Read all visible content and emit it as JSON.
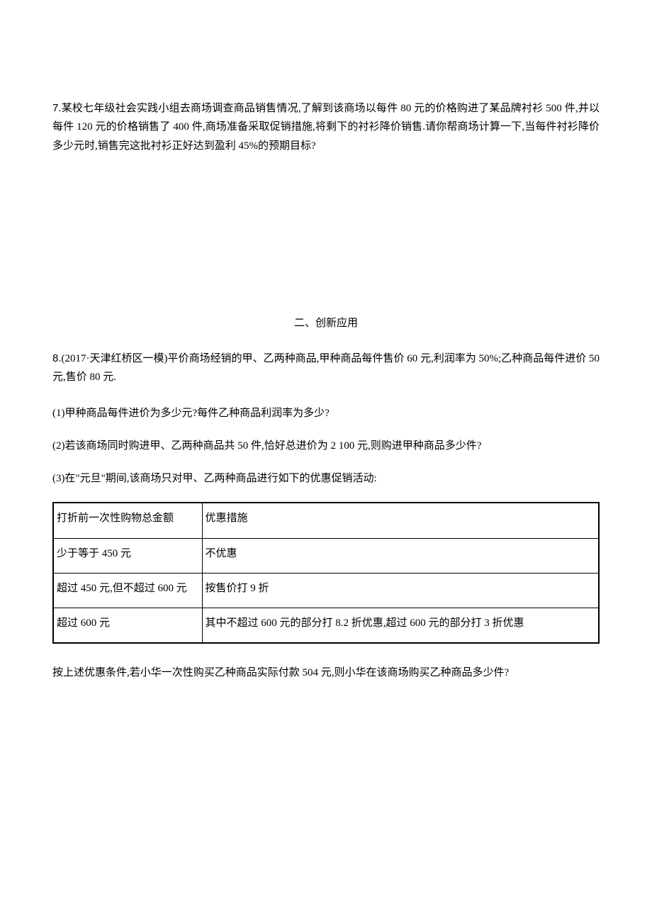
{
  "q7": {
    "number": "7.",
    "text": "某校七年级社会实践小组去商场调查商品销售情况,了解到该商场以每件 80 元的价格购进了某品牌衬衫 500 件,并以每件 120 元的价格销售了 400 件,商场准备采取促销措施,将剩下的衬衫降价销售.请你帮商场计算一下,当每件衬衫降价多少元时,销售完这批衬衫正好达到盈利 45%的预期目标?"
  },
  "section2": "二、创新应用",
  "q8": {
    "number": "8.",
    "intro": "(2017·天津红桥区一模)平价商场经销的甲、乙两种商品,甲种商品每件售价 60 元,利润率为 50%;乙种商品每件进价 50 元,售价 80 元.",
    "sub1": "(1)甲种商品每件进价为多少元?每件乙种商品利润率为多少?",
    "sub2": "(2)若该商场同时购进甲、乙两种商品共 50 件,恰好总进价为 2 100 元,则购进甲种商品多少件?",
    "sub3": "(3)在\"元旦\"期间,该商场只对甲、乙两种商品进行如下的优惠促销活动:",
    "table": {
      "header": [
        "打折前一次性购物总金额",
        "优惠措施"
      ],
      "rows": [
        [
          "少于等于 450 元",
          "不优惠"
        ],
        [
          "超过 450 元,但不超过 600 元",
          "按售价打 9 折"
        ],
        [
          "超过 600 元",
          "其中不超过 600 元的部分打 8.2 折优惠,超过 600 元的部分打 3 折优惠"
        ]
      ]
    },
    "follow": "按上述优惠条件,若小华一次性购买乙种商品实际付款 504 元,则小华在该商场购买乙种商品多少件?"
  }
}
